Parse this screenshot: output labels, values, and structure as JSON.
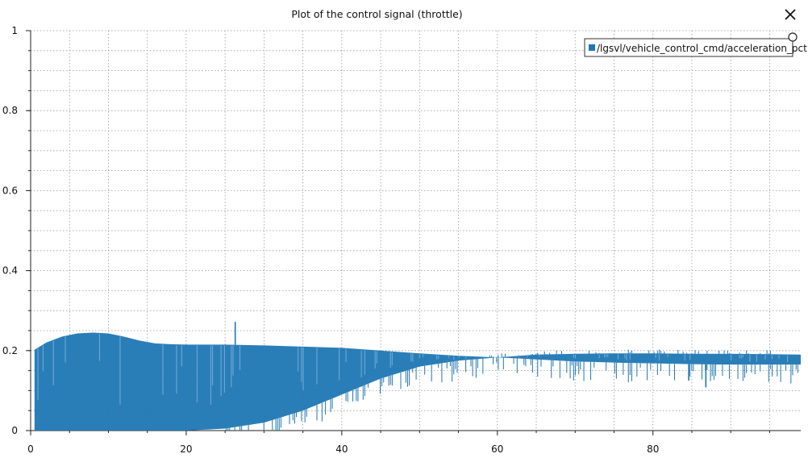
{
  "chart_data": {
    "type": "bar",
    "title": "Plot of the control signal (throttle)",
    "xlabel": "",
    "ylabel": "",
    "xlim": [
      0,
      99
    ],
    "ylim": [
      0,
      1
    ],
    "x_ticks": [
      0,
      20,
      40,
      60,
      80
    ],
    "y_ticks": [
      0,
      0.2,
      0.4,
      0.6,
      0.8,
      1
    ],
    "y_tick_labels": [
      "0",
      "0.2",
      "0.4",
      "0.6",
      "0.8",
      "1"
    ],
    "grid": true,
    "legend_position": "top-right",
    "series": [
      {
        "name": "/lgsvl/vehicle_control_cmd/acceleration_pct",
        "color": "#1f77b4",
        "envelope": {
          "x": [
            0.5,
            2,
            4,
            6,
            8,
            10,
            12,
            14,
            16,
            18,
            20,
            25,
            30,
            35,
            40,
            45,
            50,
            55,
            60,
            65,
            70,
            75,
            80,
            85,
            90,
            95,
            99
          ],
          "upper": [
            0.202,
            0.22,
            0.235,
            0.243,
            0.245,
            0.243,
            0.235,
            0.225,
            0.218,
            0.216,
            0.215,
            0.215,
            0.213,
            0.21,
            0.207,
            0.2,
            0.193,
            0.187,
            0.183,
            0.19,
            0.192,
            0.193,
            0.193,
            0.192,
            0.192,
            0.191,
            0.19
          ],
          "lower": [
            0.0,
            0.0,
            0.0,
            0.0,
            0.0,
            0.0,
            0.0,
            0.0,
            0.0,
            0.0,
            0.0,
            0.005,
            0.02,
            0.05,
            0.09,
            0.13,
            0.16,
            0.175,
            0.183,
            0.178,
            0.173,
            0.17,
            0.168,
            0.166,
            0.165,
            0.165,
            0.165
          ]
        },
        "spikes": [
          {
            "x": 26.3,
            "y": 0.272
          },
          {
            "x": 84.6,
            "y": 0.125
          },
          {
            "x": 86.8,
            "y": 0.108
          }
        ]
      }
    ]
  }
}
